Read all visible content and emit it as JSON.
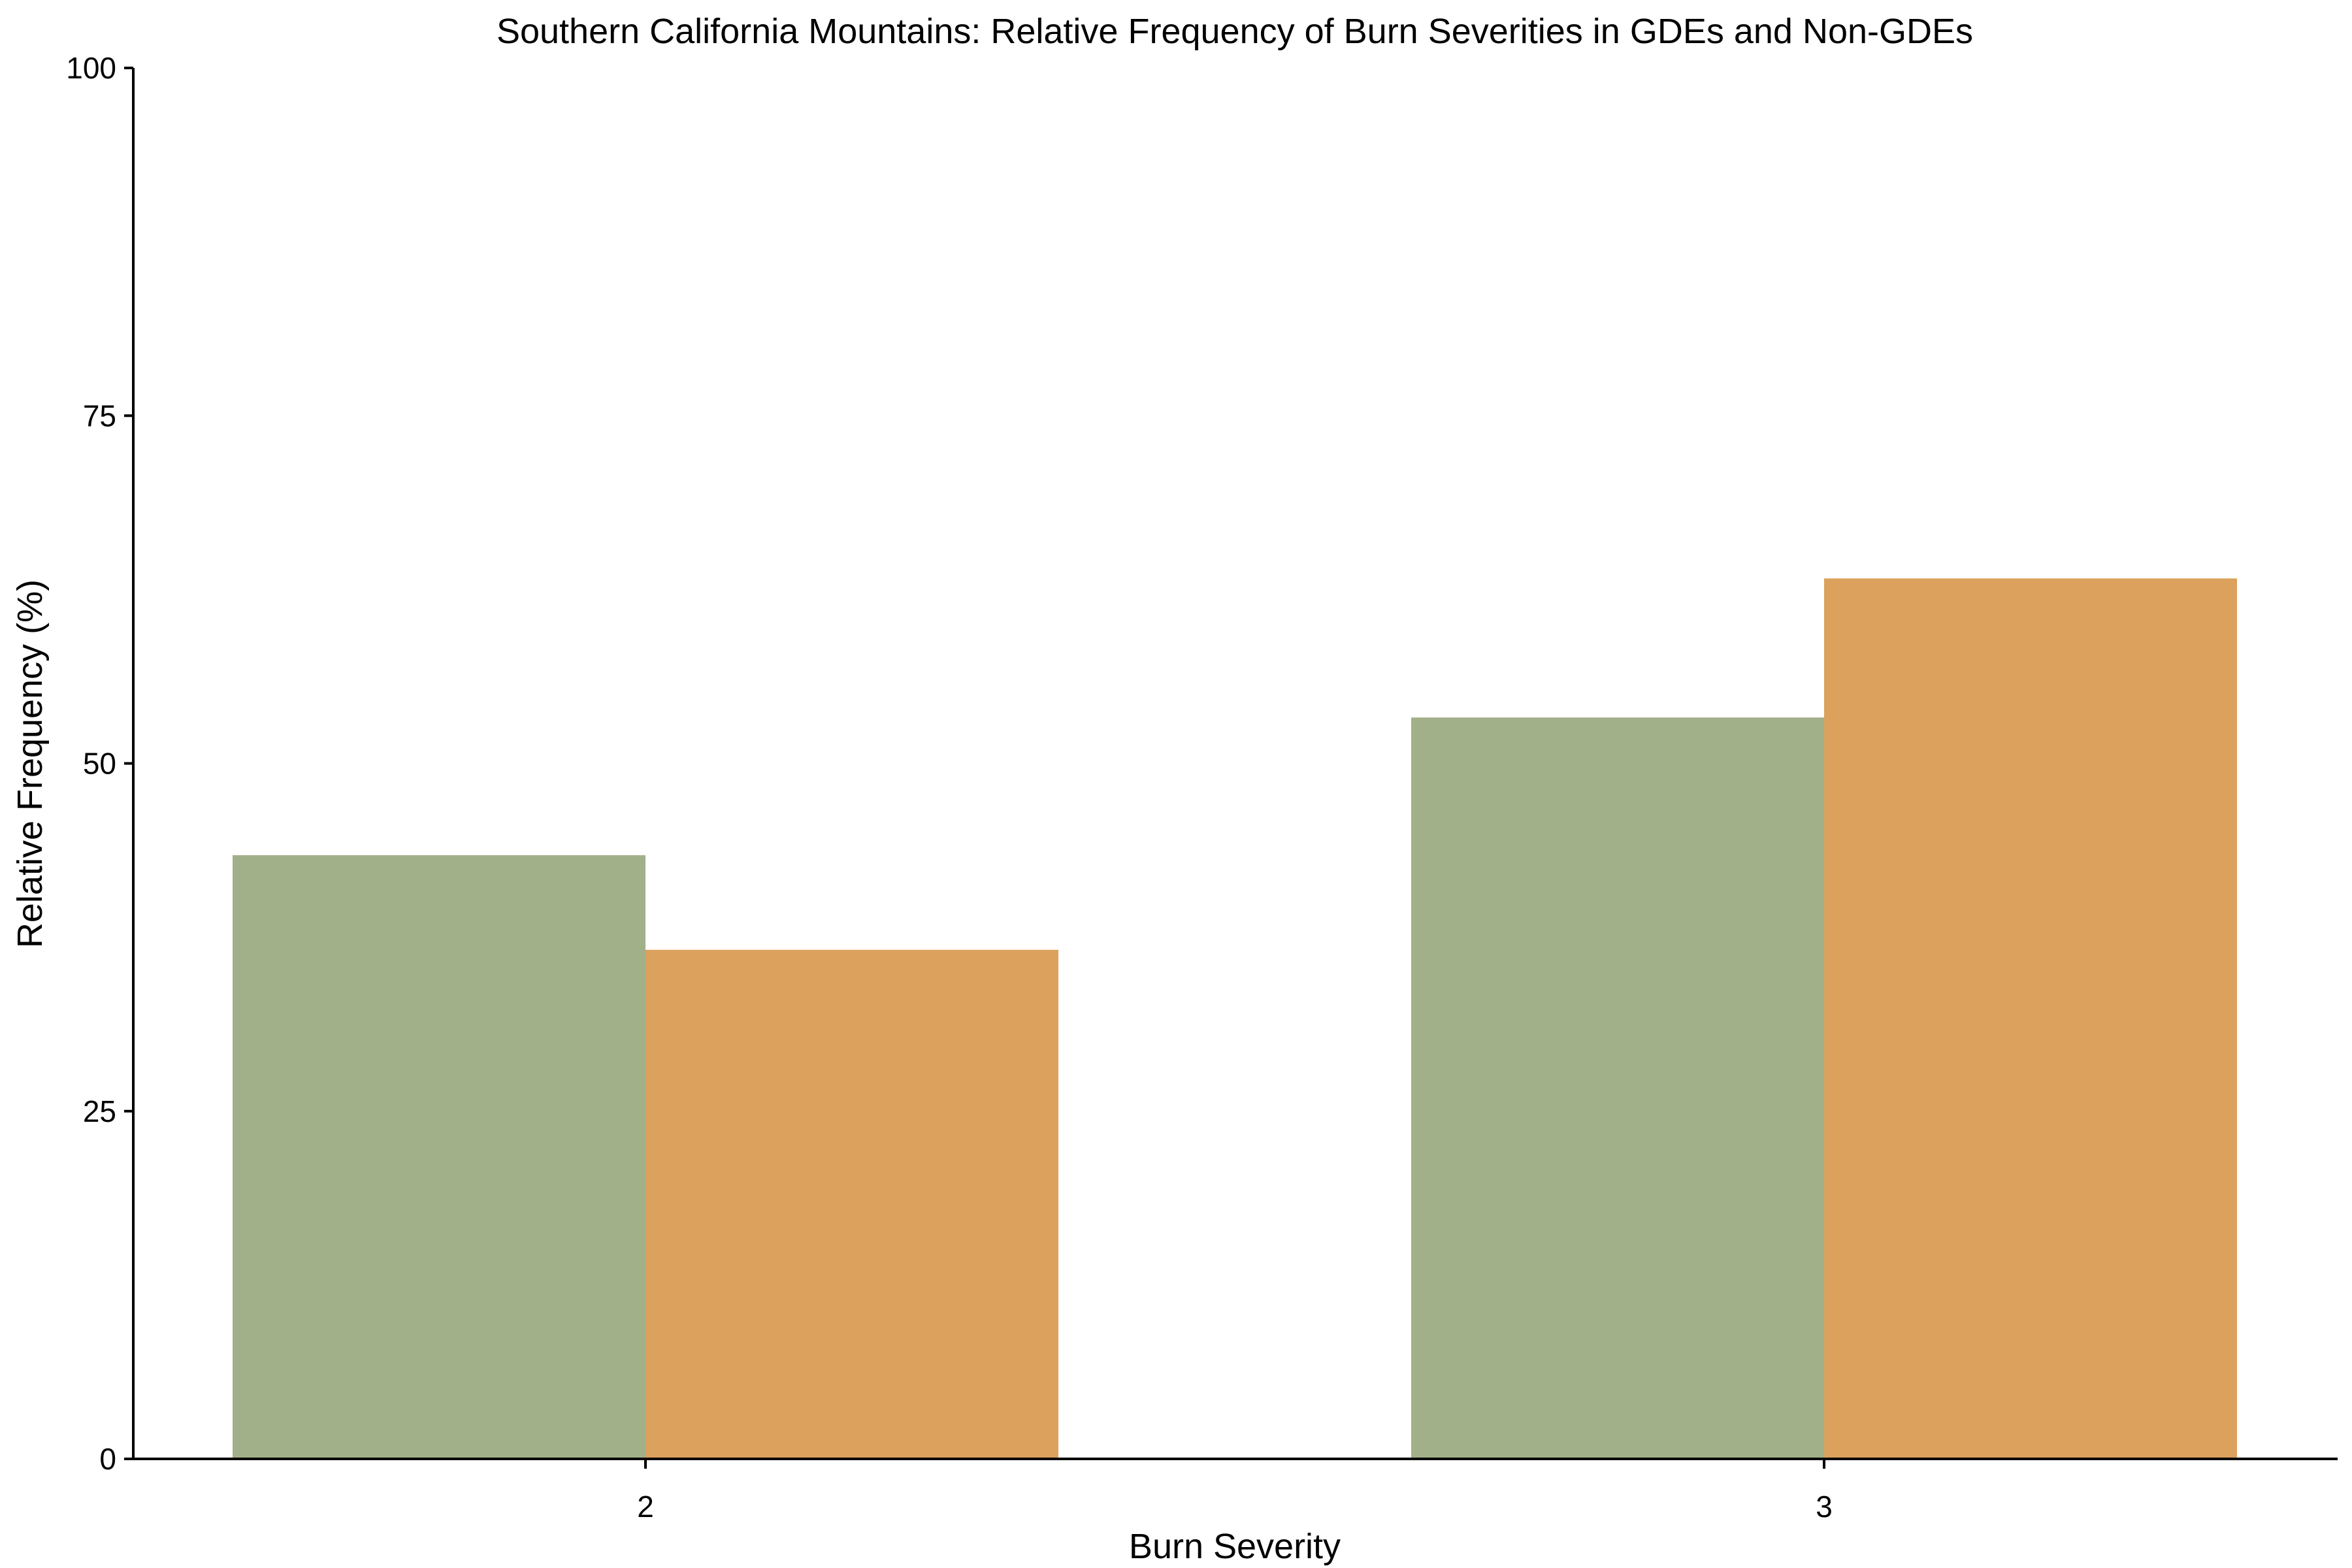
{
  "chart_data": {
    "type": "bar",
    "title": "Southern California Mountains: Relative Frequency of Burn Severities in GDEs and Non-GDEs",
    "xlabel": "Burn Severity",
    "ylabel": "Relative Frequency (%)",
    "categories": [
      "2",
      "3"
    ],
    "series": [
      {
        "values": [
          43.4,
          53.3
        ],
        "color": "#a2b089"
      },
      {
        "values": [
          36.6,
          63.3
        ],
        "color": "#dca15d"
      }
    ],
    "ylim": [
      0,
      100
    ],
    "yticks": [
      "0",
      "25",
      "50",
      "75",
      "100"
    ],
    "grid": false,
    "legend": "none"
  }
}
